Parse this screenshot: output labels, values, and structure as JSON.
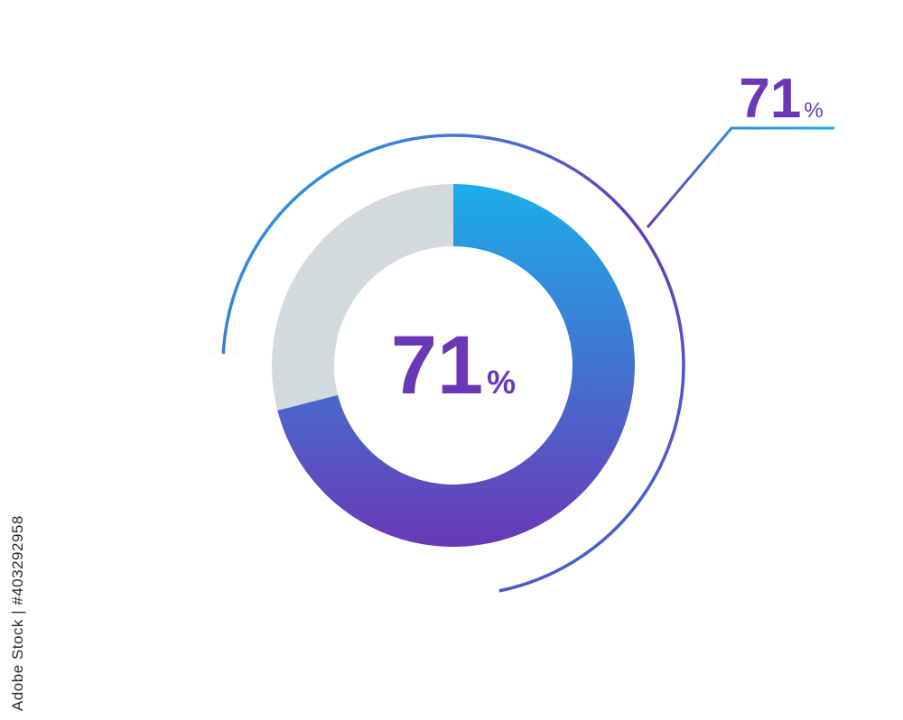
{
  "chart_data": {
    "type": "pie",
    "variant": "donut",
    "slices": [
      {
        "value": 71,
        "color_start": "#1aaeea",
        "color_end": "#6a38b7"
      },
      {
        "value": 29,
        "color": "#d3dade"
      }
    ],
    "center_label": {
      "number": "71",
      "unit": "%"
    },
    "callout_label": {
      "number": "71",
      "unit": "%"
    }
  },
  "colors": {
    "accent_blue": "#1aaeea",
    "accent_purple": "#6a38b7",
    "remainder_gray": "#d3dade",
    "text_purple": "#6a38b7"
  },
  "watermark": "Adobe Stock | #403292958"
}
